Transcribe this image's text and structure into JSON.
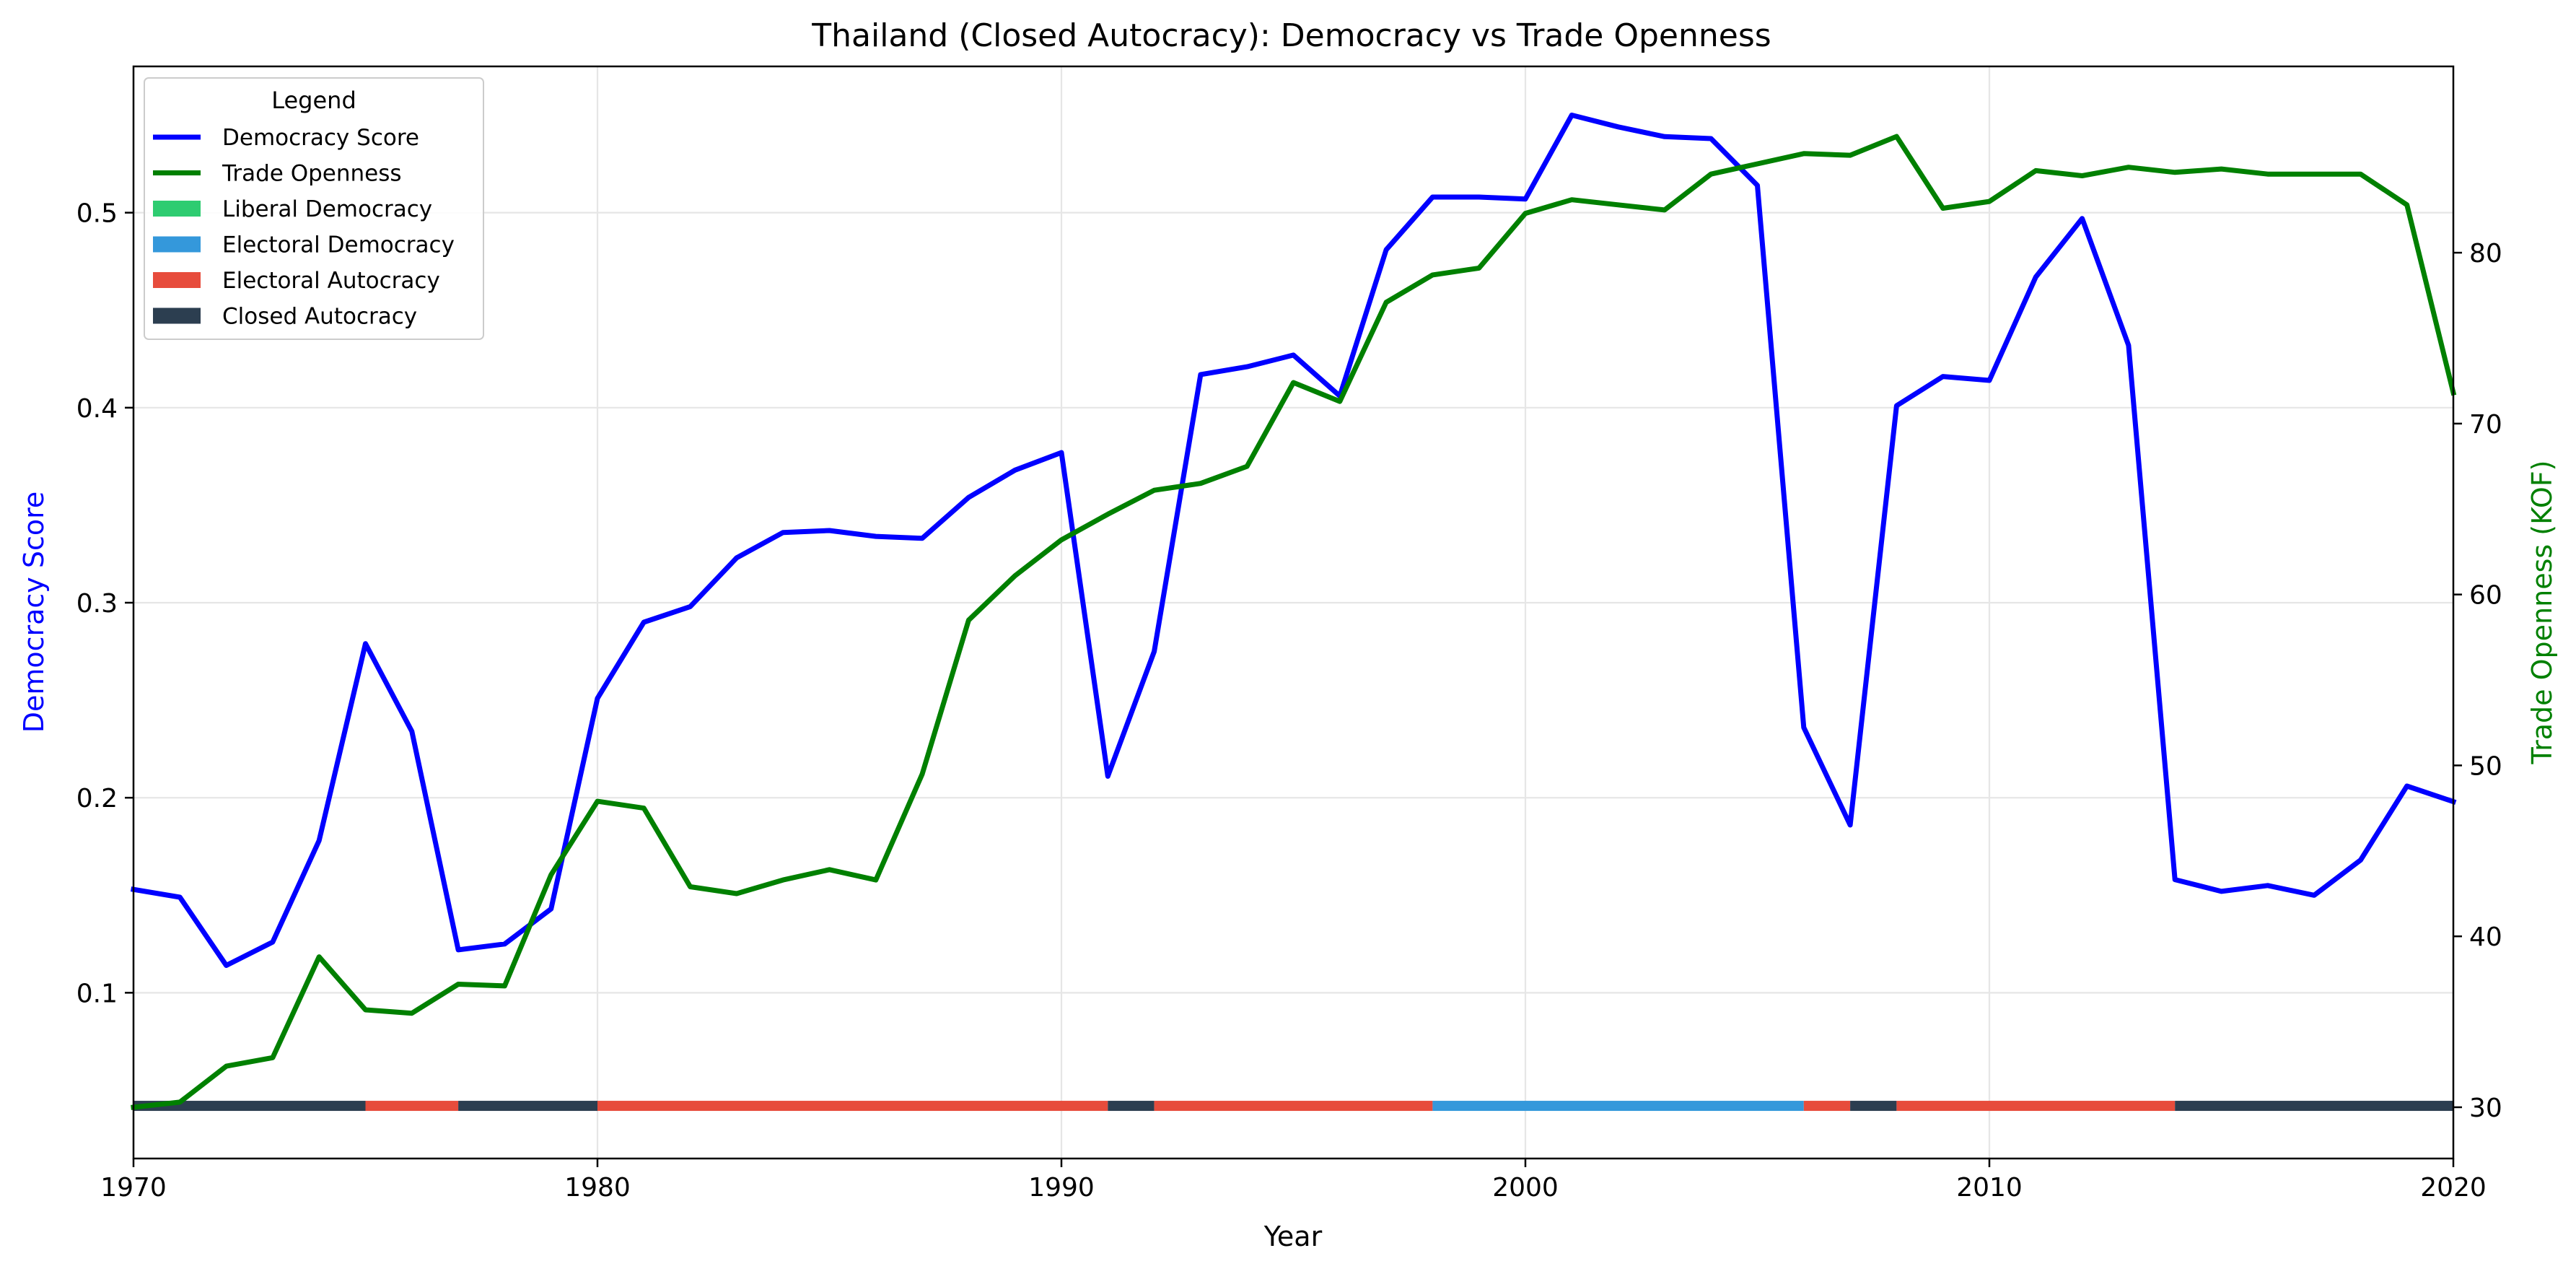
{
  "chart_data": {
    "type": "line",
    "title": "Thailand (Closed Autocracy): Democracy vs Trade Openness",
    "xlabel": "Year",
    "ylabel_left": "Democracy Score",
    "ylabel_right": "Trade Openness (KOF)",
    "xlim": [
      1970,
      2020
    ],
    "ylim_left": [
      0.015,
      0.575
    ],
    "ylim_right": [
      27,
      90.9
    ],
    "x_ticks": [
      1970,
      1980,
      1990,
      2000,
      2010,
      2020
    ],
    "y_left_ticks": [
      0.1,
      0.2,
      0.3,
      0.4,
      0.5
    ],
    "y_right_ticks": [
      30,
      40,
      50,
      60,
      70,
      80
    ],
    "grid": true,
    "legend": {
      "title": "Legend",
      "placement": "top-left",
      "entries": [
        {
          "label": "Democracy Score",
          "kind": "line",
          "color": "#0000ff"
        },
        {
          "label": "Trade Openness",
          "kind": "line",
          "color": "#008000"
        },
        {
          "label": "Liberal Democracy",
          "kind": "patch",
          "color": "#2ecc71"
        },
        {
          "label": "Electoral Democracy",
          "kind": "patch",
          "color": "#3498db"
        },
        {
          "label": "Electoral Autocracy",
          "kind": "patch",
          "color": "#e74c3c"
        },
        {
          "label": "Closed Autocracy",
          "kind": "patch",
          "color": "#2c3e50"
        }
      ]
    },
    "x": [
      1970,
      1971,
      1972,
      1973,
      1974,
      1975,
      1976,
      1977,
      1978,
      1979,
      1980,
      1981,
      1982,
      1983,
      1984,
      1985,
      1986,
      1987,
      1988,
      1989,
      1990,
      1991,
      1992,
      1993,
      1994,
      1995,
      1996,
      1997,
      1998,
      1999,
      2000,
      2001,
      2002,
      2003,
      2004,
      2005,
      2006,
      2007,
      2008,
      2009,
      2010,
      2011,
      2012,
      2013,
      2014,
      2015,
      2016,
      2017,
      2018,
      2019,
      2020
    ],
    "series": [
      {
        "name": "Democracy Score",
        "axis": "left",
        "color": "#0000ff",
        "values": [
          0.153,
          0.149,
          0.114,
          0.126,
          0.178,
          0.279,
          0.234,
          0.122,
          0.125,
          0.143,
          0.251,
          0.29,
          0.298,
          0.323,
          0.336,
          0.337,
          0.334,
          0.333,
          0.354,
          0.368,
          0.377,
          0.211,
          0.275,
          0.417,
          0.421,
          0.427,
          0.406,
          0.481,
          0.508,
          0.508,
          0.507,
          0.55,
          0.544,
          0.539,
          0.538,
          0.514,
          0.236,
          0.186,
          0.401,
          0.416,
          0.414,
          0.467,
          0.497,
          0.432,
          0.158,
          0.152,
          0.155,
          0.15,
          0.168,
          0.206,
          0.198
        ]
      },
      {
        "name": "Trade Openness",
        "axis": "right",
        "color": "#008000",
        "values": [
          30.0,
          30.3,
          32.4,
          32.9,
          38.8,
          35.7,
          35.5,
          37.2,
          37.1,
          43.6,
          47.9,
          47.5,
          42.9,
          42.5,
          43.3,
          43.9,
          43.3,
          49.5,
          58.5,
          61.1,
          63.2,
          64.7,
          66.1,
          66.5,
          67.5,
          72.4,
          71.3,
          77.1,
          78.7,
          79.1,
          82.3,
          83.1,
          82.8,
          82.5,
          84.6,
          85.2,
          85.8,
          85.7,
          86.8,
          82.6,
          83.0,
          84.8,
          84.5,
          85.0,
          84.7,
          84.9,
          84.6,
          84.6,
          84.6,
          82.8,
          71.8
        ]
      }
    ],
    "regime_bar": {
      "level": 0.042,
      "segments": [
        {
          "start": 1970,
          "end": 1975,
          "regime": "Closed Autocracy",
          "color": "#2c3e50"
        },
        {
          "start": 1975,
          "end": 1977,
          "regime": "Electoral Autocracy",
          "color": "#e74c3c"
        },
        {
          "start": 1977,
          "end": 1980,
          "regime": "Closed Autocracy",
          "color": "#2c3e50"
        },
        {
          "start": 1980,
          "end": 1991,
          "regime": "Electoral Autocracy",
          "color": "#e74c3c"
        },
        {
          "start": 1991,
          "end": 1992,
          "regime": "Closed Autocracy",
          "color": "#2c3e50"
        },
        {
          "start": 1992,
          "end": 1998,
          "regime": "Electoral Autocracy",
          "color": "#e74c3c"
        },
        {
          "start": 1998,
          "end": 2006,
          "regime": "Electoral Democracy",
          "color": "#3498db"
        },
        {
          "start": 2006,
          "end": 2007,
          "regime": "Electoral Autocracy",
          "color": "#e74c3c"
        },
        {
          "start": 2007,
          "end": 2008,
          "regime": "Closed Autocracy",
          "color": "#2c3e50"
        },
        {
          "start": 2008,
          "end": 2014,
          "regime": "Electoral Autocracy",
          "color": "#e74c3c"
        },
        {
          "start": 2014,
          "end": 2020,
          "regime": "Closed Autocracy",
          "color": "#2c3e50"
        }
      ]
    }
  }
}
